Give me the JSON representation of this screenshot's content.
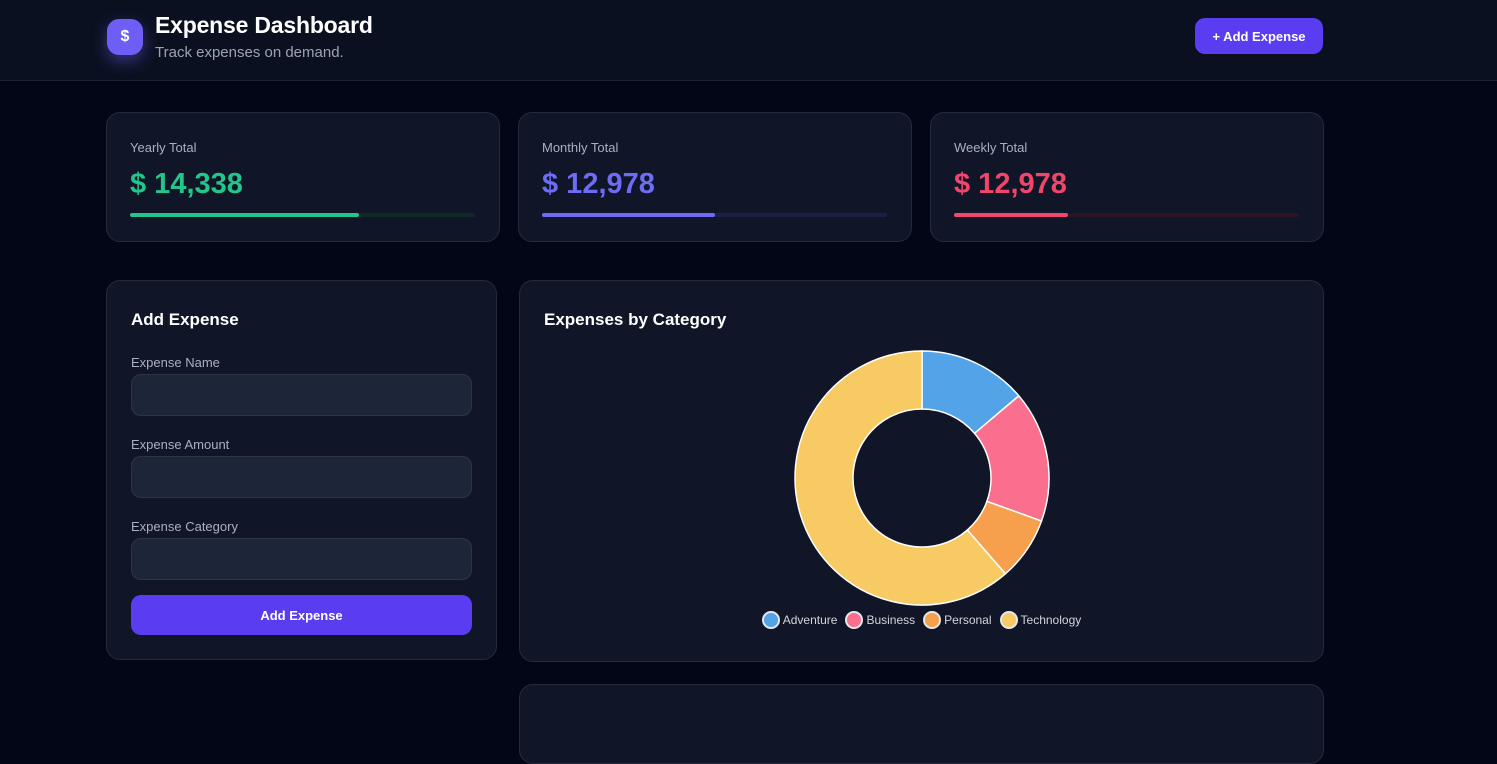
{
  "header": {
    "logo_glyph": "$",
    "title": "Expense Dashboard",
    "subtitle": "Track expenses on demand.",
    "add_button": "+ Add Expense"
  },
  "stats": [
    {
      "label": "Yearly Total",
      "value": "$ 14,338",
      "progress": 0.665,
      "color": "#22c58b",
      "track": "#0f2a26"
    },
    {
      "label": "Monthly Total",
      "value": "$ 12,978",
      "progress": 0.5,
      "color": "#6e6cf5",
      "track": "#1d1f48"
    },
    {
      "label": "Weekly Total",
      "value": "$ 12,978",
      "progress": 0.33,
      "color": "#f0466b",
      "track": "#2c1428"
    }
  ],
  "form": {
    "title": "Add Expense",
    "fields": [
      {
        "label": "Expense Name",
        "value": "",
        "placeholder": ""
      },
      {
        "label": "Expense Amount",
        "value": "",
        "placeholder": ""
      },
      {
        "label": "Expense Category",
        "value": "",
        "placeholder": ""
      }
    ],
    "submit": "Add Expense"
  },
  "chart_data": {
    "type": "pie",
    "title": "Expenses by Category",
    "categories": [
      "Adventure",
      "Business",
      "Personal",
      "Technology"
    ],
    "values": [
      13.8,
      16.7,
      8.1,
      61.4
    ],
    "colors": [
      "#52a3e8",
      "#fb6f8e",
      "#f6a04d",
      "#f8ca63"
    ],
    "legend": "bottom"
  }
}
